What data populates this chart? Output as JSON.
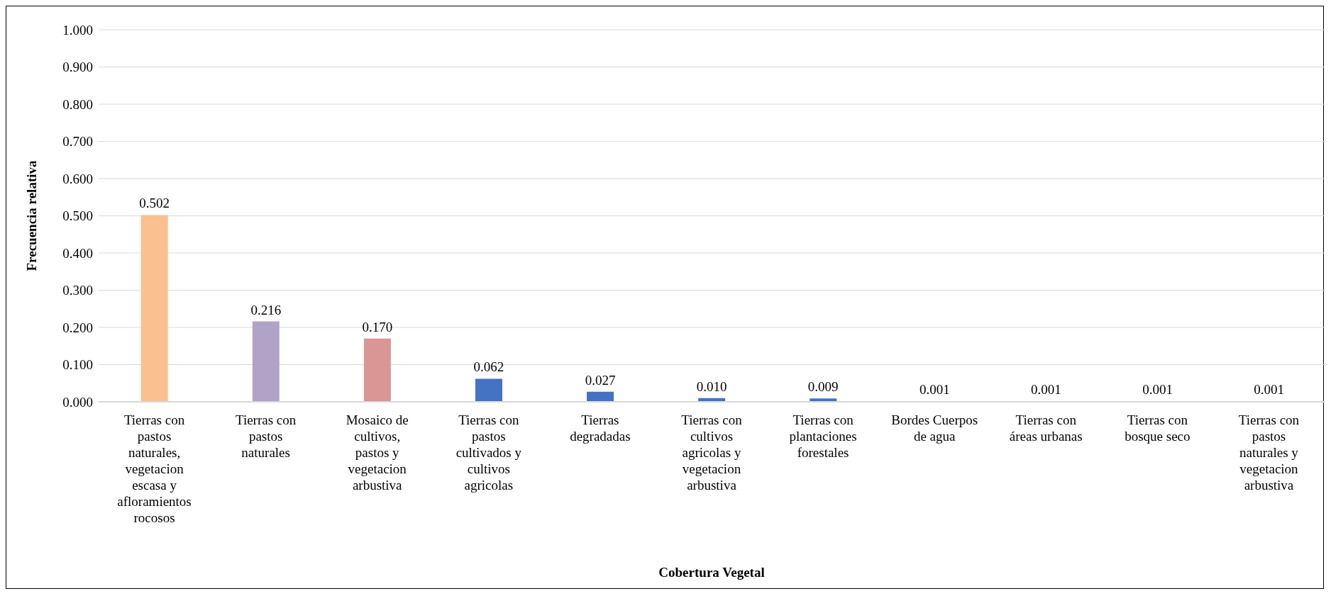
{
  "chart_data": {
    "type": "bar",
    "xlabel": "Cobertura Vegetal",
    "ylabel": "Frecuencia relativa",
    "categories": [
      "Tierras con pastos naturales, vegetacion escasa y afloramientos rocosos",
      "Tierras con pastos naturales",
      "Mosaico de cultivos, pastos y vegetacion arbustiva",
      "Tierras con pastos cultivados y cultivos agricolas",
      "Tierras degradadas",
      "Tierras con cultivos agricolas y vegetacion arbustiva",
      "Tierras con plantaciones forestales",
      "Bordes Cuerpos de agua",
      "Tierras con áreas urbanas",
      "Tierras con bosque seco",
      "Tierras con pastos naturales y vegetacion arbustiva"
    ],
    "values": [
      0.502,
      0.216,
      0.17,
      0.062,
      0.027,
      0.01,
      0.009,
      0.001,
      0.001,
      0.001,
      0.001
    ],
    "value_labels": [
      "0.502",
      "0.216",
      "0.170",
      "0.062",
      "0.027",
      "0.010",
      "0.009",
      "0.001",
      "0.001",
      "0.001",
      "0.001"
    ],
    "colors": [
      "#fac090",
      "#b3a2c7",
      "#d99694",
      "#4472c4",
      "#4472c4",
      "#4472c4",
      "#4472c4",
      "#4472c4",
      "#4472c4",
      "#4472c4",
      "#4472c4"
    ],
    "ylim": [
      0,
      1
    ],
    "yticks": [
      {
        "value": 0,
        "label": "0.000"
      },
      {
        "value": 0.1,
        "label": "0.100"
      },
      {
        "value": 0.2,
        "label": "0.200"
      },
      {
        "value": 0.3,
        "label": "0.300"
      },
      {
        "value": 0.4,
        "label": "0.400"
      },
      {
        "value": 0.5,
        "label": "0.500"
      },
      {
        "value": 0.6,
        "label": "0.600"
      },
      {
        "value": 0.7,
        "label": "0.700"
      },
      {
        "value": 0.8,
        "label": "0.800"
      },
      {
        "value": 0.9,
        "label": "0.900"
      },
      {
        "value": 1,
        "label": "1.000"
      }
    ],
    "grid": "y",
    "legend": false
  }
}
